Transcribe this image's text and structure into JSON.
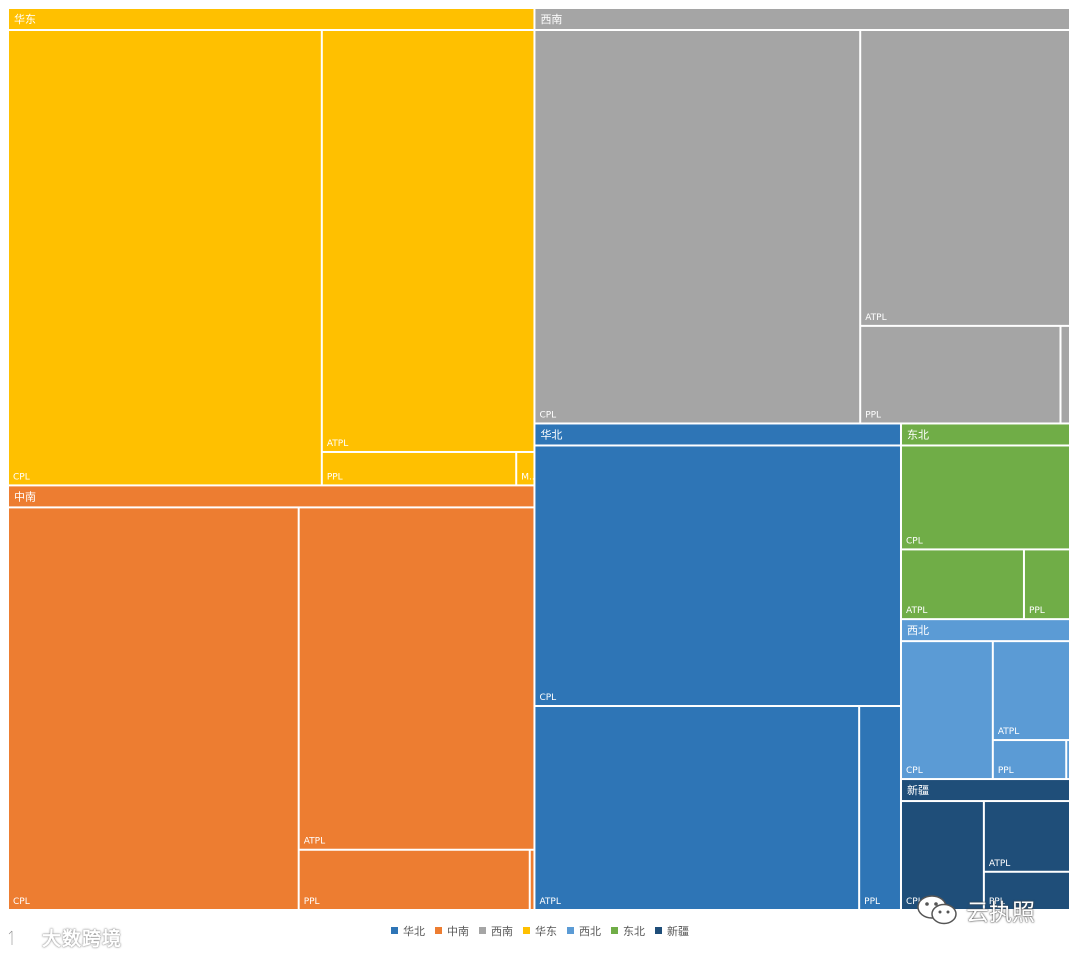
{
  "chart_data": {
    "type": "treemap",
    "title": "",
    "regions": [
      {
        "name": "华东",
        "color": "#FFC000",
        "children": [
          {
            "name": "CPL",
            "value": 3520
          },
          {
            "name": "ATPL",
            "value": 2210
          },
          {
            "name": "PPL",
            "value": 160
          },
          {
            "name": "M...",
            "value": 15
          }
        ]
      },
      {
        "name": "中南",
        "color": "#ED7D31",
        "children": [
          {
            "name": "CPL",
            "value": 2900
          },
          {
            "name": "ATPL",
            "value": 2000
          },
          {
            "name": "PPL",
            "value": 345
          },
          {
            "name": "",
            "value": 7
          }
        ]
      },
      {
        "name": "西南",
        "color": "#A5A5A5",
        "children": [
          {
            "name": "CPL",
            "value": 3180
          },
          {
            "name": "ATPL",
            "value": 1540
          },
          {
            "name": "PPL",
            "value": 485
          },
          {
            "name": "",
            "value": 23
          }
        ]
      },
      {
        "name": "华北",
        "color": "#2E75B6",
        "children": [
          {
            "name": "CPL",
            "value": 2350
          },
          {
            "name": "ATPL",
            "value": 1630
          },
          {
            "name": "PPL",
            "value": 210
          }
        ]
      },
      {
        "name": "东北",
        "color": "#70AD47",
        "children": [
          {
            "name": "CPL",
            "value": 465
          },
          {
            "name": "ATPL",
            "value": 227
          },
          {
            "name": "PPL",
            "value": 85
          }
        ]
      },
      {
        "name": "西北",
        "color": "#5B9BD5",
        "children": [
          {
            "name": "CPL",
            "value": 345
          },
          {
            "name": "ATPL",
            "value": 208
          },
          {
            "name": "PPL",
            "value": 78
          },
          {
            "name": "",
            "value": 4
          }
        ]
      },
      {
        "name": "新疆",
        "color": "#1F4E79",
        "children": [
          {
            "name": "CPL",
            "value": 255
          },
          {
            "name": "ATPL",
            "value": 172
          },
          {
            "name": "PPL",
            "value": 93
          }
        ]
      }
    ],
    "legend": [
      {
        "name": "华北",
        "color": "#2E75B6"
      },
      {
        "name": "中南",
        "color": "#ED7D31"
      },
      {
        "name": "西南",
        "color": "#A5A5A5"
      },
      {
        "name": "华东",
        "color": "#FFC000"
      },
      {
        "name": "西北",
        "color": "#5B9BD5"
      },
      {
        "name": "东北",
        "color": "#70AD47"
      },
      {
        "name": "新疆",
        "color": "#1F4E79"
      }
    ],
    "legend_position": "bottom"
  },
  "watermarks": {
    "left": "大数跨境",
    "right": "云执照"
  }
}
